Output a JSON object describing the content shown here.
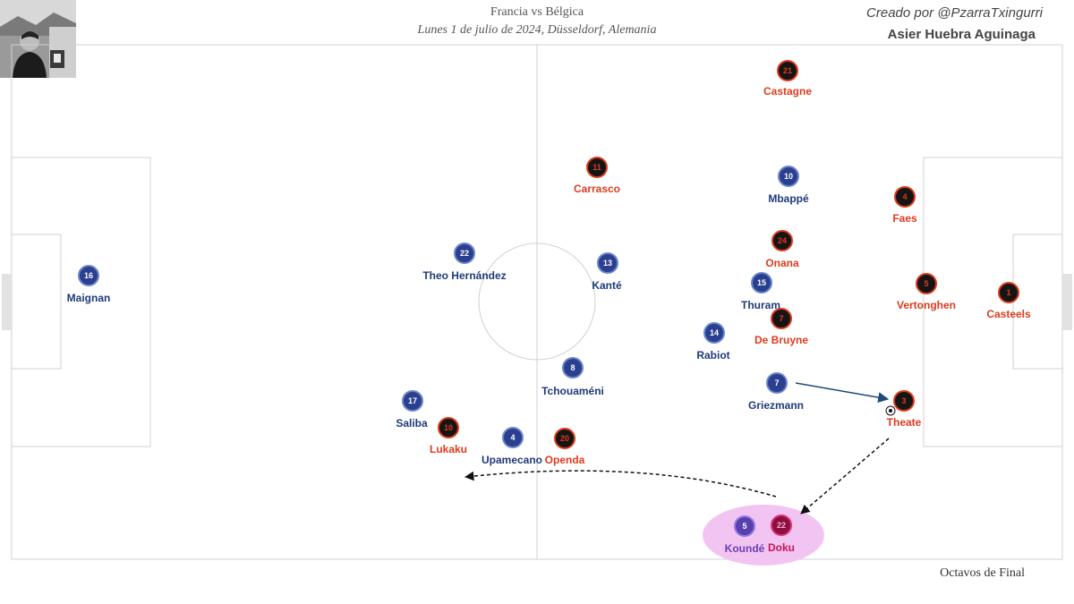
{
  "header": {
    "title": "Francia vs Bélgica",
    "subtitle": "Lunes 1 de julio de 2024, Düsseldorf, Alemania",
    "credit": "Creado por @PzarraTxingurri",
    "author": "Asier Huebra Aguinaga"
  },
  "footer": {
    "round": "Octavos de Final"
  },
  "colors": {
    "france": "#1f3a7a",
    "france_fill": "#2a3f8f",
    "belgium": "#e03a1e",
    "belgium_fill": "#151515",
    "highlight": "#f3c6f3",
    "highlight_player_koun": "#6a42b3",
    "highlight_player_doku": "#c8155a"
  },
  "players": [
    {
      "team": "france",
      "number": "16",
      "name": "Maignan"
    },
    {
      "team": "france",
      "number": "22",
      "name": "Theo Hernández"
    },
    {
      "team": "france",
      "number": "13",
      "name": "Kanté"
    },
    {
      "team": "france",
      "number": "10",
      "name": "Mbappé"
    },
    {
      "team": "france",
      "number": "15",
      "name": "Thuram"
    },
    {
      "team": "france",
      "number": "14",
      "name": "Rabiot"
    },
    {
      "team": "france",
      "number": "8",
      "name": "Tchouaméni"
    },
    {
      "team": "france",
      "number": "7",
      "name": "Griezmann"
    },
    {
      "team": "france",
      "number": "17",
      "name": "Saliba"
    },
    {
      "team": "france",
      "number": "4",
      "name": "Upamecano"
    },
    {
      "team": "france",
      "number": "5",
      "name": "Koundé",
      "highlight": true
    },
    {
      "team": "belgium",
      "number": "21",
      "name": "Castagne"
    },
    {
      "team": "belgium",
      "number": "11",
      "name": "Carrasco"
    },
    {
      "team": "belgium",
      "number": "4",
      "name": "Faes"
    },
    {
      "team": "belgium",
      "number": "24",
      "name": "Onana"
    },
    {
      "team": "belgium",
      "number": "5",
      "name": "Vertonghen"
    },
    {
      "team": "belgium",
      "number": "1",
      "name": "Casteels"
    },
    {
      "team": "belgium",
      "number": "7",
      "name": "De Bruyne"
    },
    {
      "team": "belgium",
      "number": "3",
      "name": "Theate"
    },
    {
      "team": "belgium",
      "number": "10",
      "name": "Lukaku"
    },
    {
      "team": "belgium",
      "number": "20",
      "name": "Openda"
    },
    {
      "team": "belgium",
      "number": "22",
      "name": "Doku",
      "highlight": true
    }
  ]
}
